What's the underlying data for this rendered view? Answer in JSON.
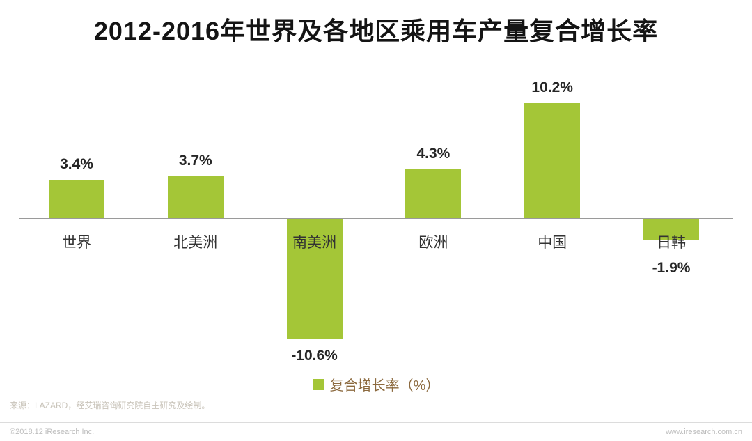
{
  "page": {
    "title": "2012-2016年世界及各地区乘用车产量复合增长率",
    "source_note": "来源：LAZARD，经艾瑞咨询研究院自主研究及绘制。",
    "footer": {
      "copyright": "©2018.12 iResearch Inc.",
      "website": "www.iresearch.com.cn"
    }
  },
  "chart_data": {
    "type": "bar",
    "title": "2012-2016年世界及各地区乘用车产量复合增长率",
    "categories": [
      "世界",
      "北美洲",
      "南美洲",
      "欧洲",
      "中国",
      "日韩"
    ],
    "values": [
      3.4,
      3.7,
      -10.6,
      4.3,
      10.2,
      -1.9
    ],
    "value_labels": [
      "3.4%",
      "3.7%",
      "-10.6%",
      "4.3%",
      "10.2%",
      "-1.9%"
    ],
    "series": [
      {
        "name": "复合增长率（%）",
        "values": [
          3.4,
          3.7,
          -10.6,
          4.3,
          10.2,
          -1.9
        ]
      }
    ],
    "legend": [
      {
        "label": "复合增长率（%）",
        "color": "#a4c637"
      }
    ],
    "bar_color": "#a4c637",
    "xlabel": "",
    "ylabel": "",
    "ylim": [
      -12,
      12
    ],
    "grid": false,
    "axis_line_color": "#9a9a9a",
    "legend_position": "bottom"
  }
}
